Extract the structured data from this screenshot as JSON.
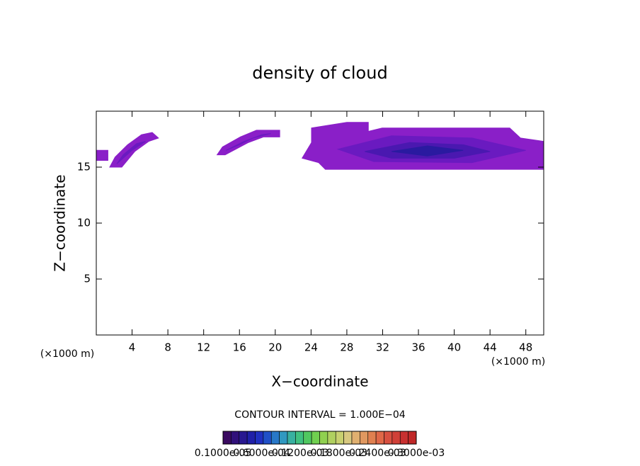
{
  "chart_data": {
    "type": "contour",
    "title": "density of cloud",
    "xlabel": "X−coordinate",
    "ylabel": "Z−coordinate",
    "x_unit_labels": [
      "(×1000 m)",
      "(×1000 m)"
    ],
    "contour_note": "CONTOUR INTERVAL = 1.000E−04",
    "xlim": [
      0,
      50
    ],
    "ylim": [
      0,
      20
    ],
    "xticks": [
      4,
      8,
      12,
      16,
      20,
      24,
      28,
      32,
      36,
      40,
      44,
      48
    ],
    "yticks": [
      5,
      10,
      15
    ],
    "regions": [
      {
        "color": "#8a1fc8",
        "x": [
          0,
          1.3,
          1.3,
          0
        ],
        "z": [
          16.5,
          16.5,
          15.6,
          15.6
        ]
      },
      {
        "color": "#8a1fc8",
        "x": [
          1.5,
          2.85,
          4.3,
          5.85,
          6.95,
          6.25,
          5.05,
          3.5,
          2.1
        ],
        "z": [
          15.0,
          15.0,
          16.4,
          17.3,
          17.6,
          18.1,
          17.9,
          17.0,
          15.9
        ]
      },
      {
        "color": "#6a1ac0",
        "x": [
          2.3,
          3.0,
          4.5,
          5.5,
          4.0
        ],
        "z": [
          15.3,
          16.1,
          17.1,
          17.3,
          16.5
        ]
      },
      {
        "color": "#8a1fc8",
        "x": [
          13.5,
          14.4,
          17.0,
          18.7,
          20.5,
          20.5,
          17.9,
          16.1,
          14.1
        ],
        "z": [
          16.1,
          16.1,
          17.2,
          17.7,
          17.7,
          18.3,
          18.3,
          17.7,
          16.8
        ]
      },
      {
        "color": "#6a1ac0",
        "x": [
          14.5,
          16.5,
          18.5,
          19.5,
          17.5,
          16.0
        ],
        "z": [
          16.5,
          17.3,
          17.9,
          18.0,
          17.6,
          17.0
        ]
      },
      {
        "color": "#8a1fc8",
        "x": [
          23.0,
          24.05,
          24.05,
          28.0,
          30.4,
          30.4,
          31.95,
          46.2,
          47.4,
          50,
          50,
          25.6,
          24.85
        ],
        "z": [
          15.8,
          17.2,
          18.5,
          19.0,
          19.0,
          18.2,
          18.5,
          18.5,
          17.6,
          17.3,
          14.8,
          14.8,
          15.4
        ]
      },
      {
        "color": "#6a1ac0",
        "x": [
          27,
          33,
          42,
          48,
          42,
          31
        ],
        "z": [
          16.6,
          17.8,
          17.6,
          16.5,
          15.4,
          15.5
        ]
      },
      {
        "color": "#4a18b0",
        "x": [
          30,
          35,
          41,
          44,
          40,
          33
        ],
        "z": [
          16.4,
          17.2,
          17.0,
          16.4,
          15.8,
          15.8
        ]
      },
      {
        "color": "#2a1aa0",
        "x": [
          33,
          37,
          41,
          37
        ],
        "z": [
          16.4,
          16.9,
          16.5,
          16.0
        ]
      }
    ],
    "colorbar": {
      "colors": [
        "#3a0a60",
        "#30107a",
        "#281890",
        "#2020a8",
        "#2030c0",
        "#2050c8",
        "#2878c8",
        "#3098c0",
        "#38b0a0",
        "#40c080",
        "#50c860",
        "#70d050",
        "#90d050",
        "#b0d060",
        "#c8d070",
        "#d8c880",
        "#e0b070",
        "#e09860",
        "#e08050",
        "#e06848",
        "#d85040",
        "#d04038",
        "#c83030",
        "#c02828"
      ],
      "labels": [
        "0.1000e-05",
        "0.6000e-04",
        "0.1200e-03",
        "0.1800e-03",
        "0.2400e-03",
        "0.3000e-03"
      ]
    }
  }
}
